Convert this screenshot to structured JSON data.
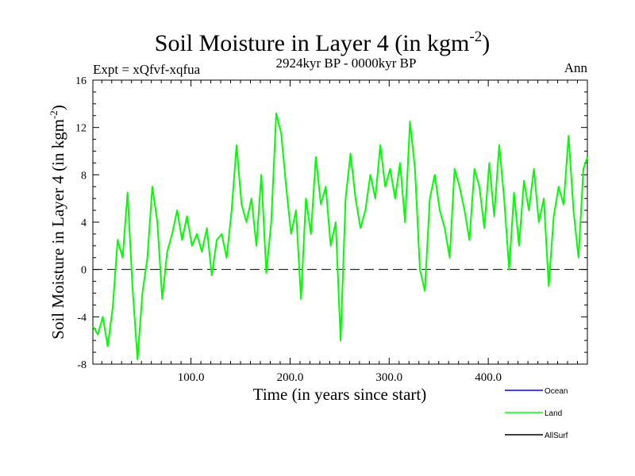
{
  "chart_data": {
    "type": "line",
    "title": "Soil Moisture in Layer 4 (in kgm",
    "title_superscript": "-2",
    "title_close": ")",
    "subtitle": "2924kyr BP - 0000kyr BP",
    "experiment_label": "Expt = xQfvf-xqfua",
    "season_label": "Ann",
    "xlabel": "Time (in years since start)",
    "ylabel": "Soil Moisture in Layer 4 (in kgm",
    "ylabel_superscript": "-2",
    "ylabel_close": ")",
    "xlim": [
      1,
      500
    ],
    "ylim": [
      -8,
      16
    ],
    "xticks": [
      100,
      200,
      300,
      400
    ],
    "xtick_labels": [
      "100.0",
      "200.0",
      "300.0",
      "400.0"
    ],
    "yticks": [
      -8,
      -4,
      0,
      4,
      8,
      12,
      16
    ],
    "ytick_labels": [
      "-8",
      "-4",
      "0",
      "4",
      "8",
      "12",
      "16"
    ],
    "zero_line": 0,
    "legend": [
      {
        "name": "Ocean",
        "color": "#0000ff"
      },
      {
        "name": "Land",
        "color": "#00ff00"
      },
      {
        "name": "AllSurf",
        "color": "#000000"
      }
    ],
    "series": [
      {
        "name": "Land",
        "color": "#00ff00",
        "x": [
          1,
          6,
          11,
          16,
          21,
          26,
          31,
          36,
          41,
          46,
          51,
          56,
          61,
          66,
          71,
          76,
          81,
          86,
          91,
          96,
          101,
          106,
          111,
          116,
          121,
          126,
          131,
          136,
          141,
          146,
          151,
          156,
          161,
          166,
          171,
          176,
          181,
          186,
          191,
          196,
          201,
          206,
          211,
          216,
          221,
          226,
          231,
          236,
          241,
          246,
          251,
          256,
          261,
          266,
          271,
          276,
          281,
          286,
          291,
          296,
          301,
          306,
          311,
          316,
          321,
          326,
          331,
          336,
          341,
          346,
          351,
          356,
          361,
          366,
          371,
          376,
          381,
          386,
          391,
          396,
          401,
          406,
          411,
          416,
          421,
          426,
          431,
          436,
          441,
          446,
          451,
          456,
          461,
          466,
          471,
          476,
          481,
          486,
          491,
          496,
          500
        ],
        "values": [
          -4.8,
          -5.5,
          -4.0,
          -6.5,
          -3.2,
          2.5,
          1.0,
          6.5,
          -1.5,
          -7.6,
          -2.0,
          1.0,
          7.0,
          4.0,
          -2.5,
          1.5,
          3.0,
          5.0,
          2.5,
          4.5,
          2.0,
          3.0,
          1.5,
          3.5,
          -0.5,
          2.5,
          3.0,
          1.0,
          5.0,
          10.5,
          5.5,
          4.0,
          6.0,
          2.0,
          8.0,
          -0.3,
          4.0,
          13.2,
          11.5,
          7.0,
          3.0,
          5.0,
          -2.5,
          6.0,
          3.0,
          9.5,
          5.5,
          7.0,
          2.0,
          4.0,
          -6.0,
          6.0,
          9.8,
          6.0,
          3.5,
          5.0,
          8.0,
          6.0,
          10.5,
          7.0,
          8.5,
          6.0,
          9.0,
          4.0,
          12.5,
          8.5,
          0.0,
          -1.8,
          6.0,
          8.0,
          5.0,
          3.5,
          1.0,
          8.5,
          7.0,
          5.0,
          2.5,
          8.5,
          7.0,
          3.5,
          9.0,
          4.5,
          10.5,
          6.0,
          0.0,
          6.5,
          2.0,
          7.5,
          5.0,
          8.5,
          4.0,
          6.0,
          -1.4,
          4.5,
          7.0,
          5.5,
          11.3,
          5.0,
          1.0,
          8.5,
          9.5
        ]
      }
    ]
  }
}
